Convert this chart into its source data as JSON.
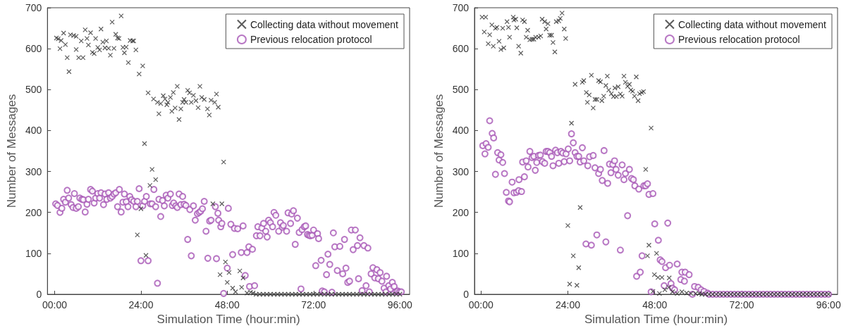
{
  "chart_data": [
    {
      "type": "scatter",
      "xlabel": "Simulation Time (hour:min)",
      "ylabel": "Number of Messages",
      "xlim": [
        -2,
        98.7
      ],
      "ylim": [
        0,
        700
      ],
      "xticks": [
        {
          "value": 0,
          "label": "00:00"
        },
        {
          "value": 24,
          "label": "24:00"
        },
        {
          "value": 48,
          "label": "48:00"
        },
        {
          "value": 72,
          "label": "72:00"
        },
        {
          "value": 96,
          "label": "96:00"
        }
      ],
      "yticks": [
        0,
        100,
        200,
        300,
        400,
        500,
        600,
        700
      ],
      "grid": false,
      "legend": "top right",
      "series": [
        {
          "name": "Collecting data without movement",
          "color": "#333333",
          "marker": "cross",
          "x": [
            0.5,
            1,
            1.5,
            1.8,
            2.5,
            3,
            3.5,
            4,
            4.4,
            5.3,
            6,
            6,
            6.7,
            7.4,
            7.9,
            8.5,
            9,
            9.4,
            10,
            10.5,
            11,
            11.4,
            12,
            12.5,
            12.9,
            13.4,
            14,
            14.4,
            15,
            15.5,
            16,
            16.5,
            17,
            17.5,
            17.9,
            18.5,
            19,
            19.4,
            19.9,
            20.5,
            21,
            21.7,
            22,
            22.6,
            23,
            23.5,
            24,
            24.5,
            25,
            25.4,
            26,
            26.5,
            27.1,
            27.5,
            28.1,
            28.6,
            29,
            29.5,
            30.2,
            30.7,
            31.2,
            31.5,
            32.2,
            32.6,
            33,
            33.5,
            34.1,
            34.6,
            35.1,
            35.6,
            36,
            36.5,
            37,
            37.5,
            38,
            38.6,
            39.3,
            39.9,
            40.4,
            40.9,
            41.6,
            42.5,
            43,
            43.5,
            44,
            44.5,
            45,
            45.5,
            46,
            46.5,
            47,
            47.5,
            48,
            48.5,
            49.5,
            50.3,
            51.5,
            52,
            52.4,
            53.5,
            54.5,
            55.2,
            56,
            57,
            58,
            59,
            60,
            61,
            62,
            63,
            64,
            65,
            66,
            67,
            68,
            69,
            70,
            71,
            72,
            73,
            74,
            75,
            76,
            77,
            78,
            79,
            80,
            81,
            82,
            83,
            84,
            85,
            86,
            87,
            88,
            89,
            90,
            91,
            92,
            93,
            94,
            95,
            96
          ],
          "values": [
            626,
            624,
            600,
            620,
            638,
            610,
            578,
            544,
            634,
            632,
            630,
            598,
            578,
            619,
            578,
            646,
            625,
            609,
            639,
            591,
            588,
            625,
            603,
            597,
            648,
            616,
            602,
            619,
            601,
            584,
            665,
            601,
            635,
            626,
            625,
            680,
            603,
            590,
            604,
            566,
            620,
            619,
            619,
            597,
            145,
            538,
            209,
            558,
            368,
            95,
            492,
            266,
            305,
            477,
            280,
            469,
            441,
            466,
            485,
            477,
            463,
            469,
            481,
            447,
            493,
            455,
            508,
            427,
            453,
            469,
            476,
            469,
            498,
            492,
            469,
            486,
            473,
            456,
            508,
            481,
            476,
            453,
            438,
            474,
            221,
            469,
            489,
            457,
            48,
            221,
            323,
            79,
            29,
            53,
            15,
            6,
            57,
            17,
            40,
            3,
            5,
            3,
            0,
            0,
            0,
            0,
            0,
            0,
            0,
            0,
            0,
            0,
            0,
            0,
            0,
            0,
            0,
            0,
            0,
            0,
            0,
            0,
            0,
            0,
            0,
            0,
            0,
            0,
            0,
            0,
            0,
            0,
            0,
            0,
            0,
            0,
            0,
            0,
            0,
            0,
            0,
            0,
            0
          ]
        },
        {
          "name": "Previous relocation protocol",
          "color": "#a655b5",
          "marker": "circle",
          "x": [
            0.3,
            0.8,
            1.5,
            2,
            2.5,
            3,
            3.5,
            3.9,
            4.6,
            5.1,
            5.5,
            6,
            6.6,
            7,
            7.6,
            8,
            8.5,
            9,
            9.4,
            10,
            10.5,
            11,
            11.4,
            12,
            12.5,
            12.9,
            13.6,
            14,
            14.5,
            15,
            15.5,
            16,
            16.5,
            17,
            17.5,
            18,
            18.5,
            19,
            19.4,
            19.9,
            20.4,
            20.9,
            21.4,
            22,
            22.6,
            23,
            23.5,
            24,
            24.5,
            25,
            25.5,
            26,
            26.6,
            27.1,
            27.6,
            28.1,
            28.6,
            29,
            29.5,
            30,
            30.5,
            31,
            31.5,
            32.2,
            32.7,
            33.1,
            33.7,
            34.1,
            34.6,
            35.1,
            35.6,
            36,
            36.5,
            37,
            37.6,
            38,
            38.6,
            39.1,
            39.7,
            40.2,
            40.6,
            41.1,
            41.6,
            42.1,
            42.6,
            43.1,
            43.5,
            44.7,
            45,
            45.4,
            45.6,
            46.2,
            46.5,
            47,
            48,
            48.3,
            49,
            49.5,
            50,
            50.9,
            51.9,
            52.4,
            53,
            53.5,
            54,
            54.2,
            55,
            55.6,
            56.1,
            56.5,
            57.1,
            57.6,
            58.1,
            58.7,
            59.1,
            59.5,
            60,
            60.6,
            61,
            61.5,
            62.3,
            62.8,
            63.3,
            63.6,
            64.5,
            64.9,
            65.6,
            65.9,
            66.4,
            66.9,
            67.5,
            68,
            68.5,
            68.8,
            69.4,
            69.8,
            70.3,
            70.7,
            71.1,
            71.6,
            72,
            72.6,
            73.1,
            73.4,
            74.1,
            74.4,
            75,
            75.6,
            76,
            76.5,
            77.1,
            77.5,
            77.9,
            78.6,
            79.3,
            80.1,
            80.6,
            81,
            81.5,
            82,
            82.5,
            83,
            83.6,
            84.2,
            84.5,
            84.9,
            85.5,
            86,
            86.6,
            87.1,
            87.5,
            88,
            88.5,
            89,
            89.6,
            90,
            90.5,
            91,
            91.6,
            92.1,
            92.3,
            92.9,
            93.4,
            93.9,
            94.4,
            94.9,
            95.4,
            95.9,
            96.4
          ],
          "values": [
            221,
            217,
            200,
            210,
            232,
            225,
            254,
            235,
            219,
            212,
            246,
            210,
            214,
            235,
            232,
            231,
            201,
            220,
            232,
            256,
            252,
            223,
            235,
            246,
            235,
            248,
            219,
            245,
            232,
            248,
            235,
            239,
            245,
            248,
            214,
            256,
            201,
            225,
            245,
            226,
            214,
            239,
            231,
            227,
            214,
            227,
            258,
            82,
            216,
            227,
            239,
            82,
            221,
            221,
            256,
            214,
            27,
            232,
            190,
            229,
            216,
            242,
            235,
            245,
            217,
            223,
            216,
            212,
            245,
            219,
            239,
            220,
            217,
            134,
            207,
            94,
            216,
            181,
            197,
            200,
            203,
            209,
            227,
            154,
            88,
            179,
            181,
            214,
            87,
            198,
            181,
            165,
            173,
            2,
            64,
            210,
            171,
            97,
            161,
            160,
            102,
            167,
            46,
            102,
            116,
            19,
            110,
            21,
            143,
            165,
            143,
            162,
            173,
            154,
            140,
            181,
            175,
            165,
            200,
            193,
            154,
            175,
            164,
            168,
            154,
            199,
            173,
            196,
            204,
            122,
            186,
            151,
            13,
            158,
            165,
            167,
            146,
            144,
            143,
            144,
            157,
            70,
            148,
            136,
            83,
            8,
            6,
            48,
            98,
            73,
            5,
            150,
            116,
            58,
            117,
            50,
            134,
            64,
            29,
            32,
            157,
            109,
            157,
            119,
            38,
            138,
            9,
            119,
            21,
            113,
            6,
            50,
            65,
            40,
            60,
            38,
            53,
            32,
            15,
            6,
            44,
            21,
            13,
            29,
            19,
            6,
            8,
            6,
            6
          ]
        }
      ]
    },
    {
      "type": "scatter",
      "xlabel": "Simulation Time (hour:min)",
      "ylabel": "Number of Messages",
      "xlim": [
        -1.8,
        98.5
      ],
      "ylim": [
        0,
        700
      ],
      "xticks": [
        {
          "value": 0,
          "label": "00:00"
        },
        {
          "value": 24,
          "label": "24:00"
        },
        {
          "value": 48,
          "label": "48:00"
        },
        {
          "value": 72,
          "label": "72:00"
        },
        {
          "value": 96,
          "label": "96:00"
        }
      ],
      "yticks": [
        0,
        100,
        200,
        300,
        400,
        500,
        600,
        700
      ],
      "grid": false,
      "legend": "top right",
      "series": [
        {
          "name": "Collecting data without movement",
          "color": "#333333",
          "marker": "cross",
          "x": [
            0.3,
            0.9,
            1.3,
            2,
            2.4,
            3,
            3.4,
            4,
            4.4,
            5,
            5.5,
            6,
            6.3,
            7.2,
            7.6,
            7.9,
            8.9,
            9.1,
            9.6,
            9.9,
            10.4,
            11,
            11.5,
            12,
            12.5,
            12.9,
            13.5,
            14.1,
            14.6,
            15.1,
            15.9,
            16.5,
            16.9,
            17.6,
            18,
            18.5,
            19,
            19.5,
            19.9,
            20.4,
            20.8,
            21.5,
            21.9,
            22.4,
            23,
            23.4,
            24,
            24.5,
            25,
            25.5,
            26,
            26.5,
            27,
            27.4,
            28,
            28.4,
            29.1,
            29.4,
            29.9,
            30.5,
            31,
            31.5,
            32,
            32.5,
            33,
            33.4,
            33.9,
            34.5,
            34.9,
            35.3,
            36,
            36.6,
            37,
            37.4,
            37.9,
            38.5,
            39,
            39.5,
            39.9,
            40.5,
            41,
            41.4,
            41.9,
            42.4,
            42.9,
            43.4,
            43.8,
            44.4,
            44.9,
            45.5,
            46,
            46.4,
            47,
            47.5,
            47.9,
            48.5,
            48.9,
            49.3,
            50,
            50.8,
            51.9,
            52,
            52.9,
            54.2,
            55.5,
            56.8,
            58,
            59.3,
            60.3,
            61,
            62,
            63,
            64,
            65,
            66,
            67,
            68,
            69,
            70,
            71,
            72,
            73,
            74,
            75,
            76,
            77,
            78,
            79,
            80,
            81,
            82,
            83,
            84,
            85,
            86,
            87,
            88,
            89,
            90,
            91,
            92,
            93,
            94,
            95,
            96
          ],
          "values": [
            677,
            641,
            677,
            612,
            634,
            658,
            606,
            650,
            652,
            618,
            598,
            650,
            602,
            666,
            652,
            628,
            677,
            670,
            672,
            651,
            606,
            589,
            670,
            666,
            628,
            645,
            622,
            623,
            623,
            628,
            628,
            631,
            672,
            666,
            648,
            661,
            633,
            633,
            615,
            592,
            666,
            668,
            674,
            687,
            648,
            625,
            168,
            25,
            418,
            94,
            513,
            22,
            65,
            212,
            518,
            522,
            493,
            469,
            487,
            535,
            455,
            476,
            476,
            522,
            519,
            473,
            484,
            510,
            533,
            499,
            490,
            483,
            504,
            483,
            507,
            489,
            484,
            533,
            518,
            508,
            513,
            499,
            496,
            484,
            531,
            473,
            490,
            493,
            495,
            305,
            94,
            120,
            406,
            7,
            48,
            100,
            41,
            2,
            41,
            11,
            17,
            40,
            6,
            2,
            6,
            3,
            2,
            2,
            2,
            0,
            0,
            0,
            0,
            0,
            0,
            0,
            0,
            0,
            0,
            0,
            0,
            0,
            0,
            0,
            0,
            0,
            0,
            0,
            0,
            0,
            0,
            0,
            0,
            0,
            0,
            0,
            0,
            0,
            0,
            0,
            0,
            0,
            0,
            0,
            0
          ]
        },
        {
          "name": "Previous relocation protocol",
          "color": "#a655b5",
          "marker": "circle",
          "x": [
            0.5,
            1.1,
            1.4,
            2,
            2.4,
            3.1,
            3.5,
            4,
            4.6,
            5,
            5.5,
            6,
            6.5,
            7,
            7.6,
            7.9,
            8.6,
            9.1,
            9.8,
            10.4,
            10.5,
            11.2,
            11.5,
            12,
            12.5,
            13,
            13.5,
            14.1,
            14.6,
            15,
            15.4,
            15.9,
            16.4,
            17,
            17.6,
            18,
            18.5,
            19,
            19.5,
            19.9,
            20.6,
            21.1,
            21.5,
            22.1,
            22.6,
            23,
            23.5,
            24.1,
            24.5,
            25,
            25.5,
            26,
            26.5,
            27,
            27.4,
            28,
            28.4,
            29,
            29.5,
            30,
            30.5,
            31,
            31.5,
            32,
            32.5,
            33,
            33.5,
            34,
            34.5,
            35,
            35.5,
            35.9,
            36.4,
            36.9,
            37.3,
            37.9,
            38.5,
            39,
            39.5,
            39.9,
            40.5,
            41,
            41.6,
            42.1,
            42.5,
            43,
            43.6,
            44,
            44.5,
            45,
            45.5,
            46,
            46.4,
            47,
            47.5,
            48,
            49,
            49.5,
            50,
            50.6,
            51,
            51.6,
            52.1,
            52.5,
            52.9,
            53.5,
            54.2,
            55.2,
            55.5,
            56.2,
            56.4,
            57.5,
            58.4,
            59,
            60,
            60.8,
            61.6,
            62.6,
            63,
            64,
            65,
            66,
            67,
            68,
            69,
            70,
            71,
            72,
            73,
            74,
            75,
            76,
            77,
            78,
            79,
            80,
            81,
            82,
            83,
            84,
            85,
            86,
            87,
            88,
            89,
            90,
            91,
            92,
            93,
            94,
            95,
            96
          ],
          "values": [
            363,
            343,
            368,
            359,
            424,
            393,
            382,
            293,
            346,
            328,
            341,
            322,
            295,
            249,
            228,
            226,
            274,
            248,
            249,
            253,
            280,
            251,
            323,
            287,
            326,
            311,
            349,
            334,
            337,
            303,
            322,
            339,
            340,
            324,
            320,
            349,
            349,
            346,
            337,
            314,
            352,
            346,
            320,
            349,
            345,
            324,
            343,
            355,
            326,
            392,
            370,
            346,
            337,
            337,
            323,
            358,
            326,
            123,
            314,
            336,
            120,
            339,
            309,
            145,
            295,
            305,
            278,
            351,
            128,
            271,
            318,
            297,
            317,
            326,
            305,
            291,
            108,
            316,
            280,
            295,
            192,
            305,
            283,
            280,
            265,
            44,
            257,
            54,
            94,
            265,
            265,
            270,
            244,
            6,
            246,
            172,
            132,
            84,
            80,
            21,
            65,
            174,
            71,
            26,
            15,
            11,
            74,
            36,
            54,
            32,
            54,
            48,
            0,
            19,
            17,
            11,
            7,
            3,
            0,
            0,
            0,
            0,
            0,
            0,
            0,
            0,
            0,
            0,
            0,
            0,
            0,
            0,
            0,
            0,
            0,
            0,
            0,
            0,
            0,
            0,
            0,
            0,
            0,
            0,
            0,
            0,
            0,
            0,
            0,
            0,
            0,
            0
          ]
        }
      ]
    }
  ]
}
